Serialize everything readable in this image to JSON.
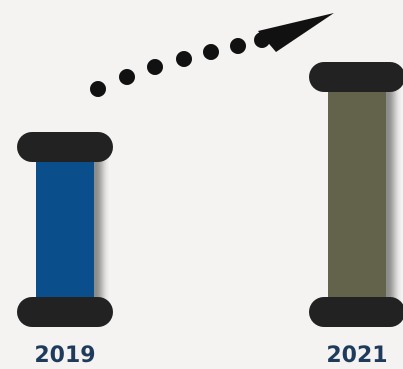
{
  "chart_data": {
    "type": "bar",
    "title": "",
    "xlabel": "",
    "ylabel": "",
    "categories": [
      "2019",
      "2021"
    ],
    "values": [
      165,
      235
    ],
    "ylim": [
      0,
      250
    ],
    "grid": false,
    "legend": "none",
    "trend_arrow": {
      "from": "2019",
      "to": "2021",
      "style": "dotted"
    }
  },
  "colors": {
    "background": "#f4f3f1",
    "bar_2019": "#0a4f8c",
    "bar_2021": "#63624a",
    "cap": "#222222",
    "label": "#1f3b5c",
    "arrow": "#111111"
  }
}
